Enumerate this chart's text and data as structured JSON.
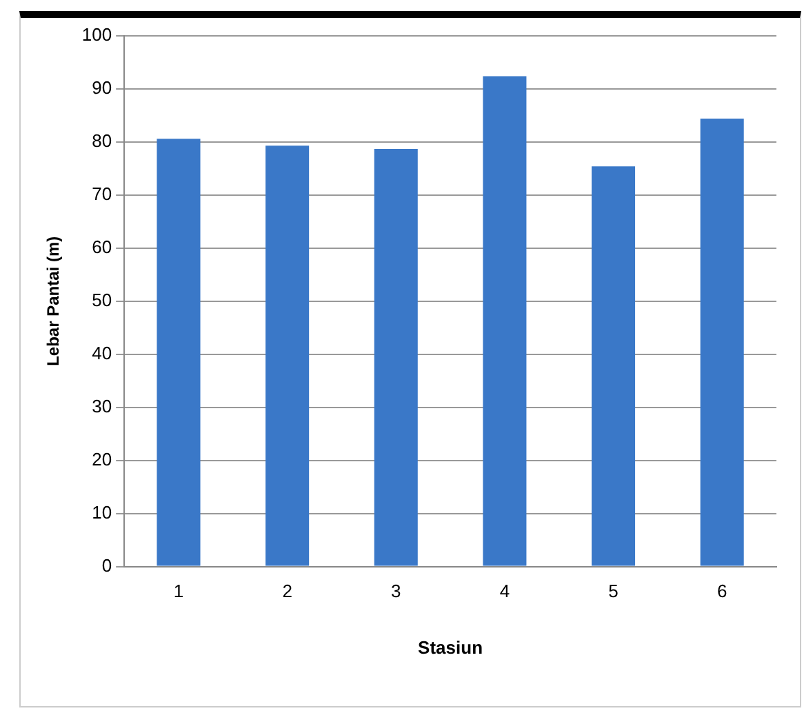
{
  "chart_data": {
    "type": "bar",
    "xlabel": "Stasiun",
    "ylabel": "Lebar Pantai (m)",
    "categories": [
      "1",
      "2",
      "3",
      "4",
      "5",
      "6"
    ],
    "values": [
      80.6,
      79.3,
      78.7,
      92.4,
      75.4,
      84.4
    ],
    "color": "#3a78c8",
    "ylim": [
      0,
      100
    ],
    "yticks": [
      0,
      10,
      20,
      30,
      40,
      50,
      60,
      70,
      80,
      90,
      100
    ],
    "grid": "y",
    "legend": false
  }
}
